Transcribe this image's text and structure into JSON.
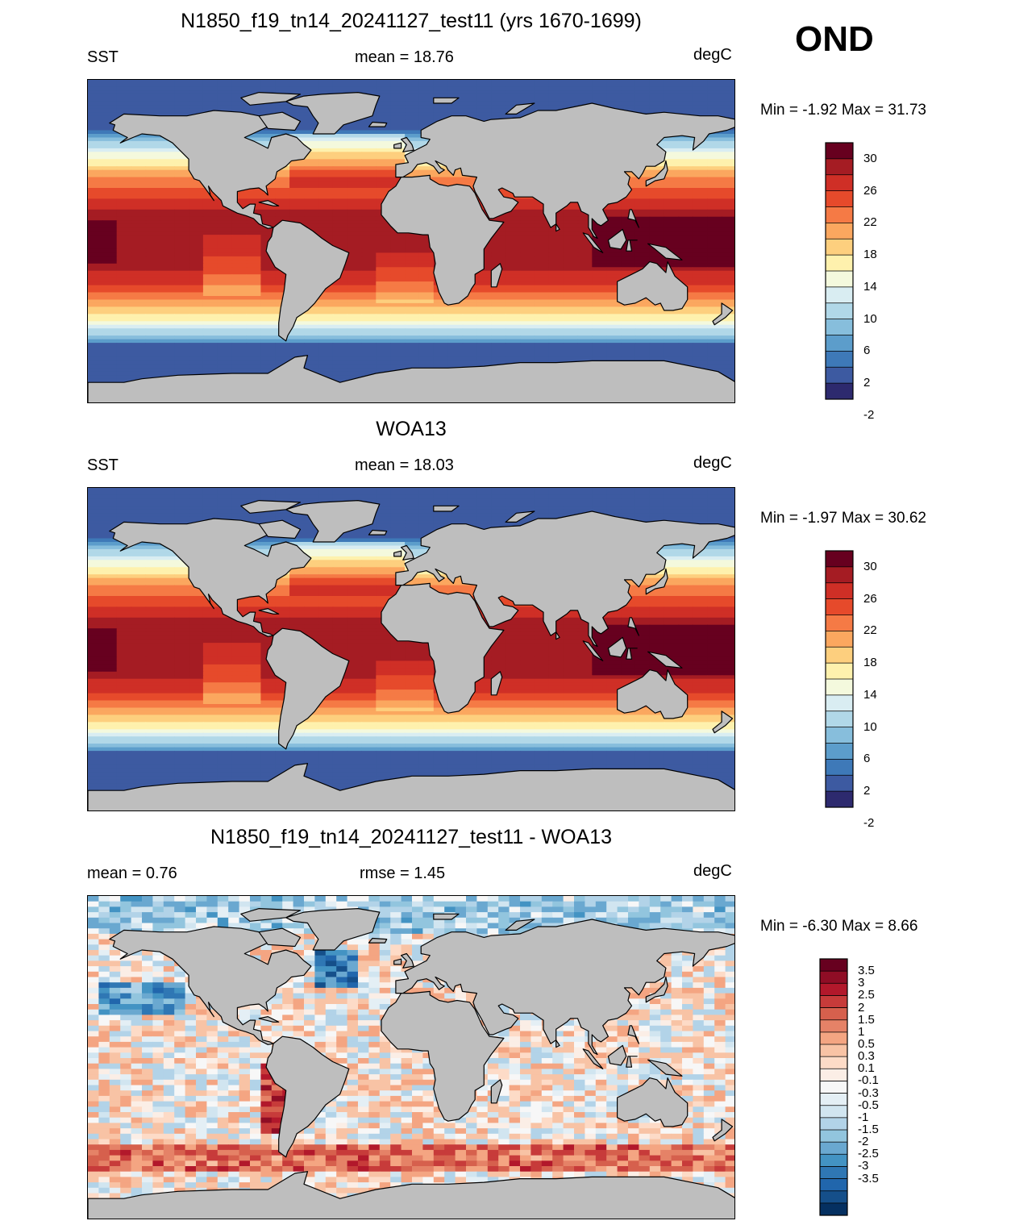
{
  "season": "OND",
  "panels": [
    {
      "title": "N1850_f19_tn14_20241127_test11 (yrs 1670-1699)",
      "left_label": "SST",
      "center_label": "mean =  18.76",
      "units": "degC",
      "minmax": "Min =  -1.92 Max =  31.73",
      "colorbar": {
        "labels": [
          "30",
          "26",
          "22",
          "18",
          "14",
          "10",
          "6",
          "2",
          "-2"
        ],
        "colors": [
          "#67001f",
          "#a51c23",
          "#cf2f26",
          "#e64a2b",
          "#f57a45",
          "#fba75f",
          "#fdcf7e",
          "#fef1ad",
          "#f4f9dd",
          "#d9edf2",
          "#b1d8e8",
          "#87bedc",
          "#5c9dcb",
          "#3e79b8",
          "#3d5aa1",
          "#2d2a6e"
        ]
      }
    },
    {
      "title": "WOA13",
      "left_label": "SST",
      "center_label": "mean =  18.03",
      "units": "degC",
      "minmax": "Min =  -1.97 Max =  30.62",
      "colorbar": {
        "labels": [
          "30",
          "26",
          "22",
          "18",
          "14",
          "10",
          "6",
          "2",
          "-2"
        ],
        "colors": [
          "#67001f",
          "#a51c23",
          "#cf2f26",
          "#e64a2b",
          "#f57a45",
          "#fba75f",
          "#fdcf7e",
          "#fef1ad",
          "#f4f9dd",
          "#d9edf2",
          "#b1d8e8",
          "#87bedc",
          "#5c9dcb",
          "#3e79b8",
          "#3d5aa1",
          "#2d2a6e"
        ]
      }
    },
    {
      "title": "N1850_f19_tn14_20241127_test11 - WOA13",
      "left_label": "mean =   0.76",
      "center_label": "rmse =   1.45",
      "units": "degC",
      "minmax": "Min =  -6.30 Max =   8.66",
      "colorbar": {
        "labels": [
          "3.5",
          "3",
          "2.5",
          "2",
          "1.5",
          "1",
          "0.5",
          "0.3",
          "0.1",
          "-0.1",
          "-0.3",
          "-0.5",
          "-1",
          "-1.5",
          "-2",
          "-2.5",
          "-3",
          "-3.5"
        ],
        "colors": [
          "#67001f",
          "#8f0d25",
          "#b2182b",
          "#c73b3a",
          "#d6604d",
          "#e58267",
          "#f4a582",
          "#f8c3a5",
          "#fddbc7",
          "#fbeee6",
          "#f7f7f7",
          "#e4eff5",
          "#d1e5f0",
          "#b2d3e8",
          "#92c5de",
          "#6aa8d0",
          "#4393c3",
          "#2f77b4",
          "#2166ac",
          "#154f8a",
          "#053061"
        ]
      }
    }
  ]
}
